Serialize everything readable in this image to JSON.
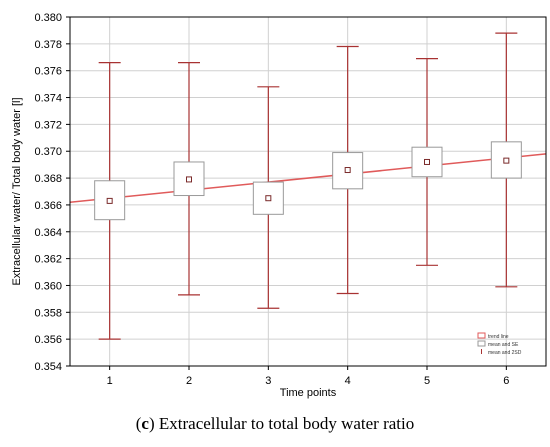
{
  "caption": {
    "letter": "c",
    "text": "Extracellular to total body water ratio"
  },
  "chart_data": {
    "type": "box",
    "title": "",
    "xlabel": "Time points",
    "ylabel": "Extracellular water/ Total body water [l]",
    "x": [
      1,
      2,
      3,
      4,
      5,
      6
    ],
    "mean": [
      0.3663,
      0.3679,
      0.3665,
      0.3686,
      0.3692,
      0.3693
    ],
    "se_low": [
      0.3649,
      0.3667,
      0.3653,
      0.3672,
      0.3681,
      0.368
    ],
    "se_high": [
      0.3678,
      0.3692,
      0.3677,
      0.3699,
      0.3703,
      0.3707
    ],
    "sd2_low": [
      0.356,
      0.3593,
      0.3583,
      0.3594,
      0.3615,
      0.3599
    ],
    "sd2_high": [
      0.3766,
      0.3766,
      0.3748,
      0.3778,
      0.3769,
      0.3788
    ],
    "trend_line": {
      "x": [
        0.5,
        6.5
      ],
      "y": [
        0.3662,
        0.3698
      ]
    },
    "xticks": [
      "1",
      "2",
      "3",
      "4",
      "5",
      "6"
    ],
    "yticks": [
      "0.354",
      "0.356",
      "0.358",
      "0.360",
      "0.362",
      "0.364",
      "0.366",
      "0.368",
      "0.370",
      "0.372",
      "0.374",
      "0.376",
      "0.378",
      "0.380"
    ],
    "ylim": [
      0.354,
      0.38
    ],
    "xlim": [
      0.5,
      6.5
    ],
    "grid": true,
    "legend_position": "bottom-right",
    "legend": [
      "trend line",
      "mean and SE",
      "mean and 2SD"
    ],
    "colors": {
      "whisker": "#a83232",
      "trend": "#e05a5a",
      "box": "#999999",
      "mean": "#7a2a2a",
      "grid": "#d0d0d0"
    }
  }
}
